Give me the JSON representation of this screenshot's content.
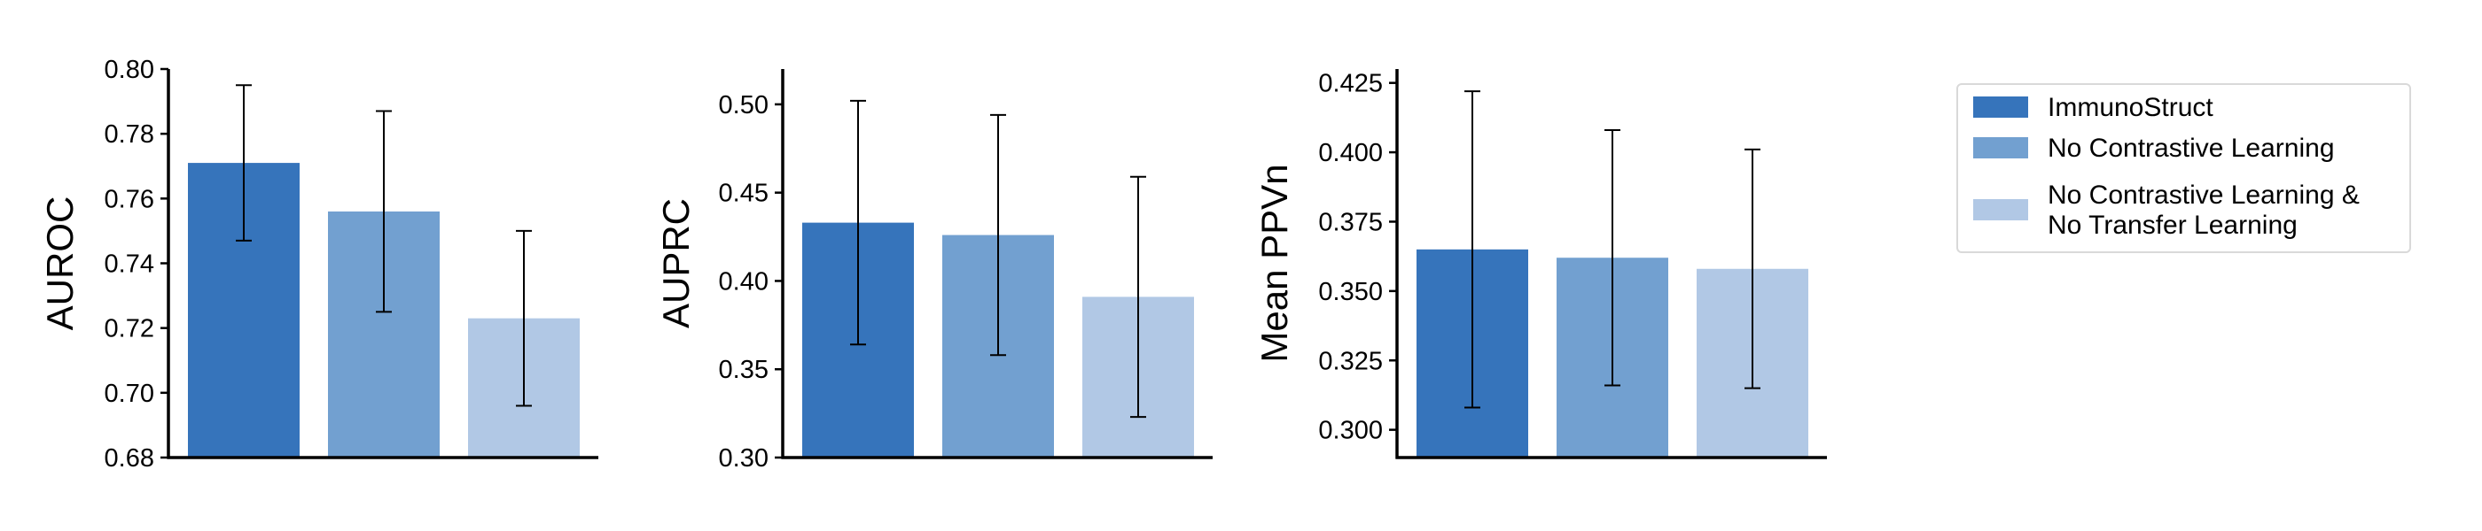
{
  "chart_data": [
    {
      "type": "bar",
      "categories": [
        "ImmunoStruct",
        "No Contrastive Learning",
        "No Contrastive Learning & No Transfer Learning"
      ],
      "values": [
        0.771,
        0.756,
        0.723
      ],
      "error": [
        0.024,
        0.031,
        0.027
      ],
      "ylabel": "AUROC",
      "ylim": [
        0.68,
        0.8
      ],
      "yticks": [
        "0.68",
        "0.70",
        "0.72",
        "0.74",
        "0.76",
        "0.78",
        "0.80"
      ],
      "grid": false
    },
    {
      "type": "bar",
      "categories": [
        "ImmunoStruct",
        "No Contrastive Learning",
        "No Contrastive Learning & No Transfer Learning"
      ],
      "values": [
        0.433,
        0.426,
        0.391
      ],
      "error": [
        0.069,
        0.068,
        0.068
      ],
      "ylabel": "AUPRC",
      "ylim": [
        0.3,
        0.52
      ],
      "yticks": [
        "0.30",
        "0.35",
        "0.40",
        "0.45",
        "0.50"
      ],
      "grid": false
    },
    {
      "type": "bar",
      "categories": [
        "ImmunoStruct",
        "No Contrastive Learning",
        "No Contrastive Learning & No Transfer Learning"
      ],
      "values": [
        0.365,
        0.362,
        0.358
      ],
      "error": [
        0.057,
        0.046,
        0.043
      ],
      "ylabel": "Mean PPVn",
      "ylim": [
        0.29,
        0.43
      ],
      "yticks": [
        "0.300",
        "0.325",
        "0.350",
        "0.375",
        "0.400",
        "0.425"
      ],
      "grid": false
    }
  ],
  "legend": {
    "placement": "right",
    "entries": [
      {
        "lines": [
          "ImmunoStruct"
        ],
        "color": "#3674BB"
      },
      {
        "lines": [
          "No Contrastive Learning"
        ],
        "color": "#72A0D0"
      },
      {
        "lines": [
          "No Contrastive Learning &",
          "No Transfer Learning"
        ],
        "color": "#B1C8E5"
      }
    ]
  },
  "colors": [
    "#3674BB",
    "#72A0D0",
    "#B1C8E5"
  ]
}
